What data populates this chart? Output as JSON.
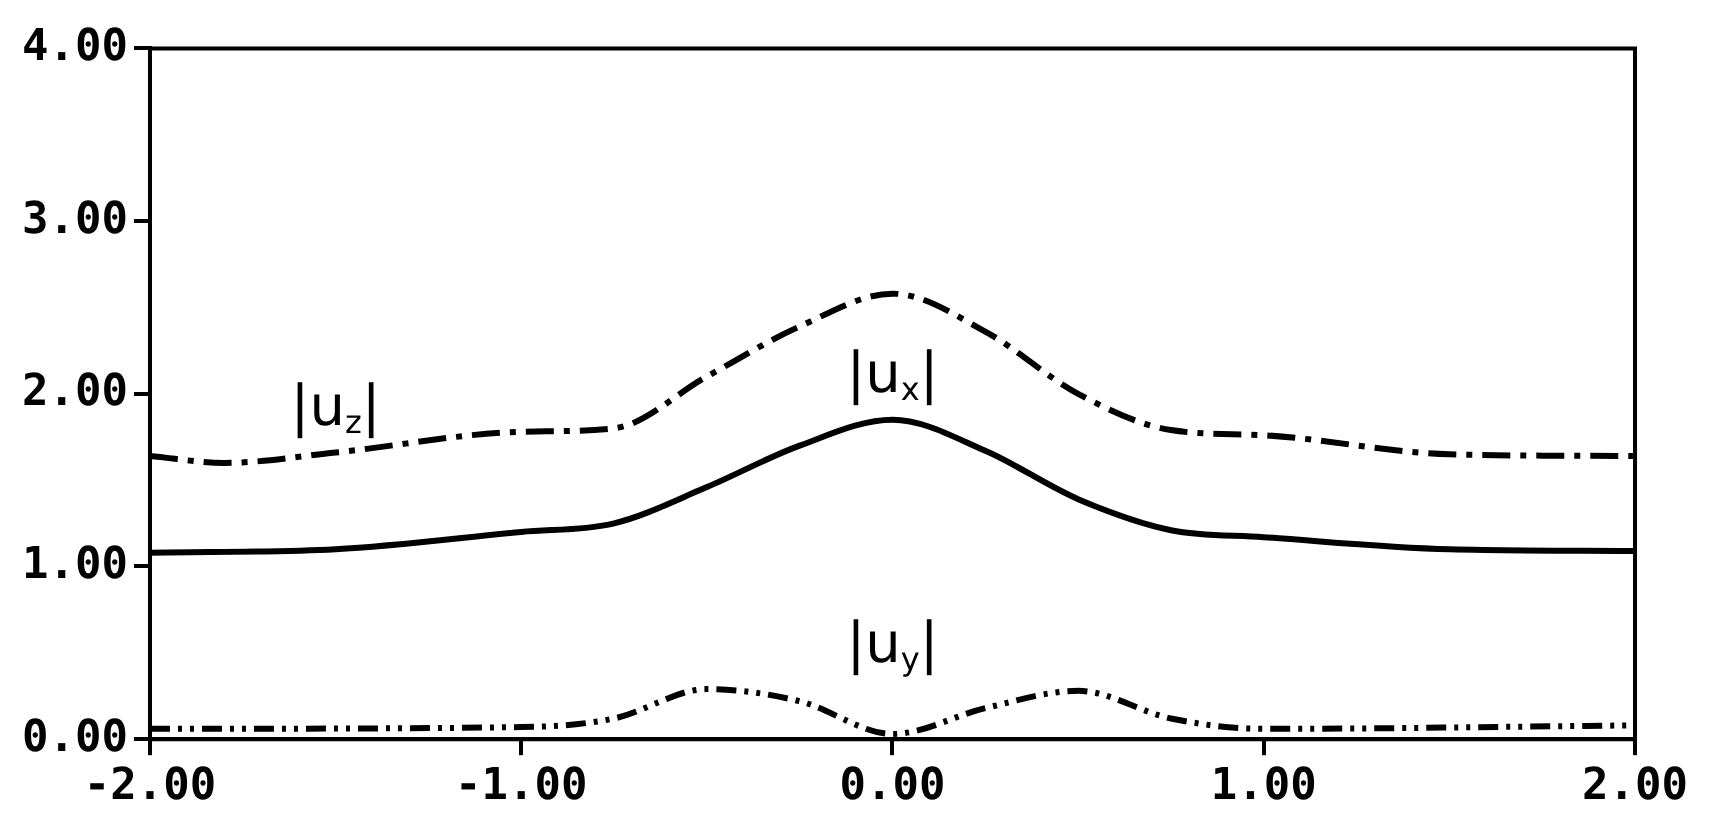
{
  "chart_data": {
    "type": "line",
    "xlim": [
      -2,
      2
    ],
    "xticks": [
      {
        "value": -2,
        "label": "-2.00"
      },
      {
        "value": -1,
        "label": "-1.00"
      },
      {
        "value": 0,
        "label": "0.00"
      },
      {
        "value": 1,
        "label": "1.00"
      },
      {
        "value": 2,
        "label": "2.00"
      }
    ],
    "ylim": [
      0,
      4
    ],
    "yticks": [
      {
        "value": 0,
        "label": "0.00"
      },
      {
        "value": 1,
        "label": "1.00"
      },
      {
        "value": 2,
        "label": "2.00"
      },
      {
        "value": 3,
        "label": "3.00"
      },
      {
        "value": 4,
        "label": "4.00"
      }
    ],
    "grid": false,
    "legend": false,
    "marker": "none",
    "series": [
      {
        "name": "|u$_{z}$|",
        "color": "#000000",
        "line_style": "dashed",
        "x": [
          -2,
          -1.8,
          -1.5,
          -1,
          -0.75,
          -0.5,
          -0.25,
          0,
          0.25,
          0.5,
          0.75,
          1,
          1.5,
          2
        ],
        "values": [
          1.64,
          1.6,
          1.66,
          1.78,
          1.8,
          2.1,
          2.39,
          2.58,
          2.36,
          2.0,
          1.79,
          1.76,
          1.65,
          1.64
        ]
      },
      {
        "name": "|u$_{x}$|",
        "color": "#000000",
        "line_style": "solid",
        "x": [
          -2,
          -1.5,
          -1,
          -0.75,
          -0.5,
          -0.25,
          0,
          0.25,
          0.5,
          0.75,
          1,
          1.5,
          2
        ],
        "values": [
          1.08,
          1.1,
          1.2,
          1.25,
          1.46,
          1.7,
          1.85,
          1.67,
          1.39,
          1.21,
          1.17,
          1.1,
          1.09
        ]
      },
      {
        "name": "|u$_{y}$|",
        "color": "#000000",
        "line_style": "dotted",
        "x": [
          -2,
          -1,
          -0.75,
          -0.5,
          -0.25,
          0,
          0.25,
          0.5,
          0.75,
          1,
          2
        ],
        "values": [
          0.06,
          0.07,
          0.12,
          0.29,
          0.22,
          0.03,
          0.18,
          0.28,
          0.12,
          0.06,
          0.08
        ]
      }
    ]
  }
}
